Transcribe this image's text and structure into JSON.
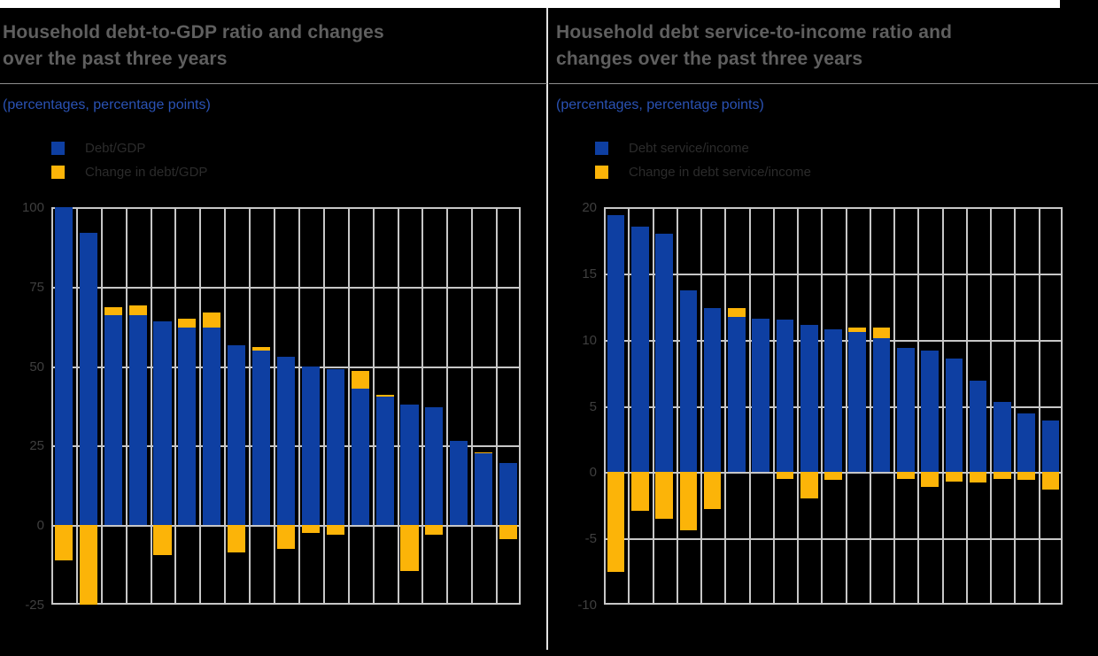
{
  "page": {
    "background": "#000000",
    "top_strip_color": "#ffffff",
    "divider_color": "#e3e3e3"
  },
  "panels": [
    {
      "title_line1": "Household debt-to-GDP ratio and changes",
      "title_line2": "over the past three years",
      "subtitle": "(percentages, percentage points)",
      "legend": [
        {
          "label": "Debt/GDP",
          "color": "#0e3fa2"
        },
        {
          "label": "Change in debt/GDP",
          "color": "#fcb408"
        }
      ]
    },
    {
      "title_line1": "Household debt service-to-income ratio and",
      "title_line2": "changes over the past three years",
      "subtitle": "(percentages, percentage points)",
      "legend": [
        {
          "label": "Debt service/income",
          "color": "#0e3fa2"
        },
        {
          "label": "Change in debt service/income",
          "color": "#fcb408"
        }
      ]
    }
  ],
  "chart_data": [
    {
      "type": "bar",
      "title": "Household debt-to-GDP ratio and changes over the past three years",
      "units": "percentages, percentage points",
      "x_tick_labels_visible": false,
      "n_bars": 19,
      "ylim": [
        -25,
        100
      ],
      "yticks": [
        100,
        75,
        50,
        25,
        0,
        -25
      ],
      "grid": "full",
      "legend_position": "top-left",
      "stacking_note": "positive change stacked on top of level bar; negative change hangs below zero line",
      "series": [
        {
          "name": "Debt/GDP",
          "role": "level",
          "color": "#0e3fa2",
          "values": [
            100,
            92,
            66,
            66,
            64,
            62,
            62,
            56.5,
            55,
            53,
            50,
            49,
            43,
            40.5,
            38,
            37,
            26.5,
            22.5,
            19.5
          ]
        },
        {
          "name": "Change in debt/GDP",
          "role": "change",
          "color": "#fcb408",
          "values": [
            -11,
            -25,
            2.5,
            3,
            -9.5,
            3,
            5,
            -8.5,
            1,
            -7.5,
            -2.5,
            -3,
            5.5,
            0.5,
            -14.5,
            -3,
            0,
            0.5,
            -4.5
          ]
        }
      ]
    },
    {
      "type": "bar",
      "title": "Household debt service-to-income ratio and changes over the past three years",
      "units": "percentages, percentage points",
      "x_tick_labels_visible": false,
      "n_bars": 19,
      "ylim": [
        -10,
        20
      ],
      "yticks": [
        20,
        15,
        10,
        5,
        0,
        -5,
        -10
      ],
      "grid": "full",
      "legend_position": "top-left",
      "stacking_note": "positive change stacked on top of level bar; negative change hangs below zero line",
      "series": [
        {
          "name": "Debt service/income",
          "role": "level",
          "color": "#0e3fa2",
          "values": [
            19.4,
            18.5,
            18,
            13.7,
            12.4,
            11.7,
            11.6,
            11.5,
            11.1,
            10.8,
            10.6,
            10.1,
            9.4,
            9.2,
            8.6,
            6.9,
            5.3,
            4.4,
            3.9
          ]
        },
        {
          "name": "Change in debt service/income",
          "role": "change",
          "color": "#fcb408",
          "values": [
            -7.5,
            -2.9,
            -3.5,
            -4.4,
            -2.8,
            0.7,
            0,
            -0.5,
            -2,
            -0.6,
            0.3,
            0.8,
            -0.5,
            -1.1,
            -0.7,
            -0.8,
            -0.5,
            -0.6,
            -1.3
          ]
        }
      ]
    }
  ],
  "colors": {
    "bar_blue": "#0e3fa2",
    "bar_yellow": "#fcb408",
    "gridline": "#c7c7c7",
    "title_text": "#5f5f5f",
    "subtitle_text": "#2a52b4",
    "legend_text": "#2b2b2b",
    "tick_text": "#3f3f3f"
  }
}
